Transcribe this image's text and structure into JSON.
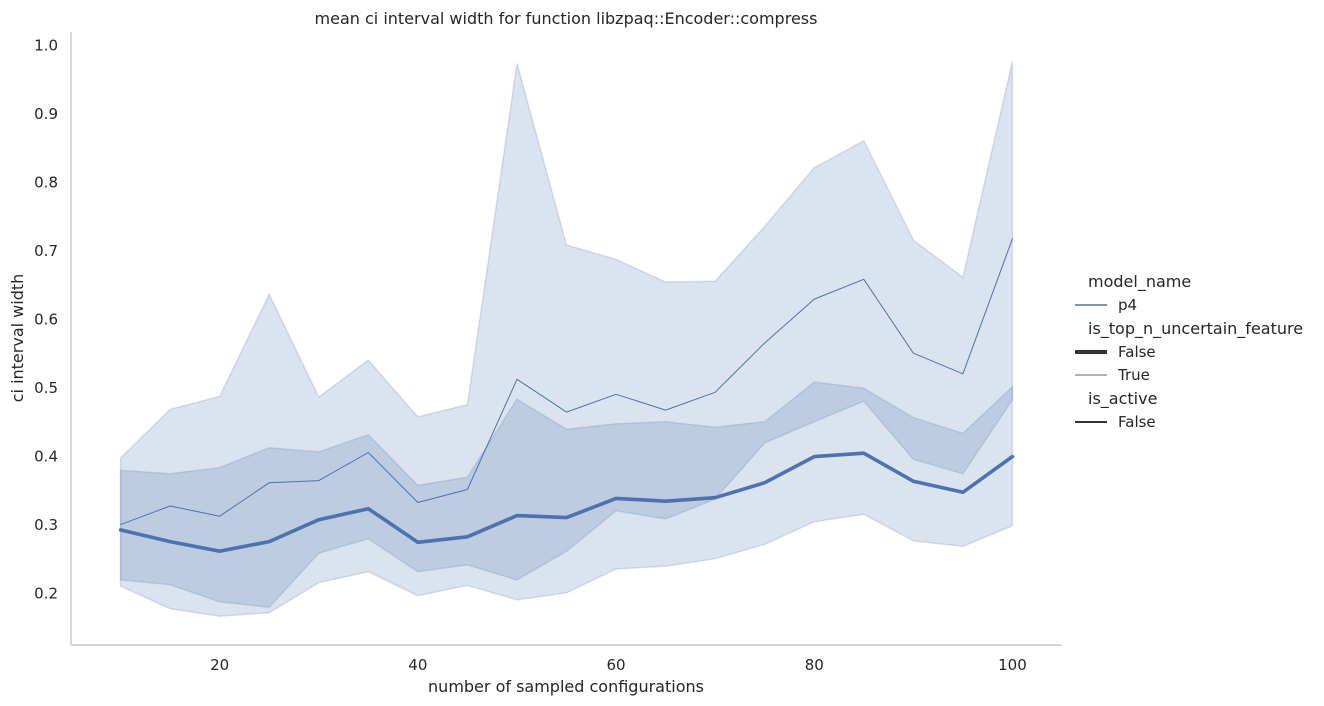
{
  "chart_data": {
    "type": "line",
    "title": "mean ci interval width for function libzpaq::Encoder::compress",
    "xlabel": "number of sampled configurations",
    "ylabel": "ci interval width",
    "xlim": [
      5,
      105
    ],
    "ylim": [
      0.125,
      1.02
    ],
    "xticks": [
      20,
      40,
      60,
      80,
      100
    ],
    "yticks": [
      0.2,
      0.3,
      0.4,
      0.5,
      0.6,
      0.7,
      0.8,
      0.9,
      1.0
    ],
    "grid": false,
    "legend_position": "right",
    "legend": [
      {
        "title": "model_name",
        "entries": [
          {
            "label": "p4",
            "style": "color"
          }
        ]
      },
      {
        "title": "is_top_n_uncertain_feature",
        "entries": [
          {
            "label": "False",
            "style": "thick"
          },
          {
            "label": "True",
            "style": "thin"
          }
        ]
      },
      {
        "title": "is_active",
        "entries": [
          {
            "label": "False",
            "style": "dark"
          }
        ]
      }
    ],
    "color": "#4c72b0",
    "x": [
      10,
      15,
      20,
      25,
      30,
      35,
      40,
      45,
      50,
      55,
      60,
      65,
      70,
      75,
      80,
      85,
      90,
      95,
      100
    ],
    "series": [
      {
        "is_top_n_uncertain_feature": "False",
        "values": [
          0.293,
          0.276,
          0.262,
          0.276,
          0.308,
          0.324,
          0.275,
          0.283,
          0.314,
          0.311,
          0.339,
          0.335,
          0.34,
          0.362,
          0.4,
          0.405,
          0.364,
          0.348,
          0.4
        ],
        "ci_lower": [
          0.22,
          0.213,
          0.188,
          0.18,
          0.259,
          0.28,
          0.232,
          0.242,
          0.22,
          0.262,
          0.321,
          0.309,
          0.338,
          0.42,
          0.451,
          0.481,
          0.396,
          0.375,
          0.483
        ],
        "ci_upper": [
          0.38,
          0.375,
          0.384,
          0.413,
          0.407,
          0.432,
          0.358,
          0.37,
          0.484,
          0.44,
          0.448,
          0.451,
          0.443,
          0.451,
          0.509,
          0.5,
          0.457,
          0.434,
          0.502
        ]
      },
      {
        "is_top_n_uncertain_feature": "True",
        "values": [
          0.301,
          0.328,
          0.313,
          0.362,
          0.365,
          0.406,
          0.333,
          0.352,
          0.513,
          0.465,
          0.491,
          0.468,
          0.494,
          0.566,
          0.63,
          0.659,
          0.551,
          0.521,
          0.718
        ],
        "ci_lower": [
          0.211,
          0.178,
          0.167,
          0.172,
          0.216,
          0.232,
          0.197,
          0.212,
          0.191,
          0.201,
          0.236,
          0.24,
          0.251,
          0.272,
          0.305,
          0.316,
          0.277,
          0.269,
          0.299
        ],
        "ci_upper": [
          0.398,
          0.469,
          0.488,
          0.637,
          0.487,
          0.541,
          0.458,
          0.476,
          0.974,
          0.709,
          0.688,
          0.655,
          0.656,
          0.736,
          0.822,
          0.861,
          0.716,
          0.662,
          0.977
        ]
      }
    ]
  }
}
